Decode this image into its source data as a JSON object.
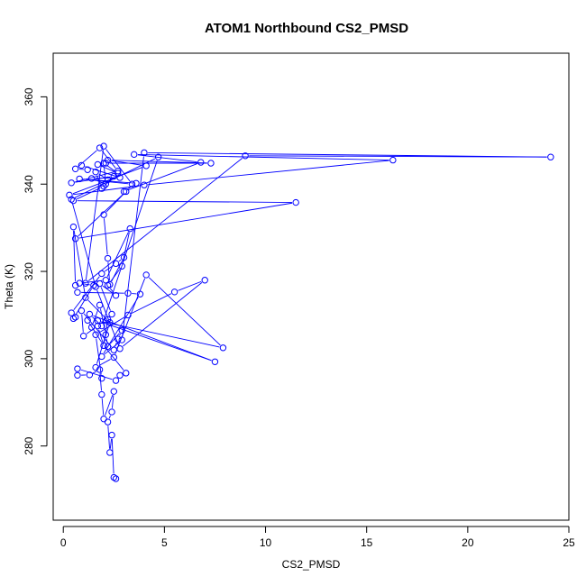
{
  "chart_data": {
    "type": "scatter",
    "title": "ATOM1 Northbound CS2_PMSD",
    "xlabel": "CS2_PMSD",
    "ylabel": "Theta (K)",
    "xlim": [
      -0.5,
      25
    ],
    "ylim": [
      263,
      370
    ],
    "x_ticks": [
      0,
      5,
      10,
      15,
      20,
      25
    ],
    "y_ticks": [
      280,
      300,
      320,
      340,
      360
    ],
    "x_tick_labels": [
      "0",
      "5",
      "10",
      "15",
      "20",
      "25"
    ],
    "y_tick_labels": [
      "280",
      "300",
      "320",
      "340",
      "360"
    ],
    "colors": {
      "series": "#0000ff",
      "axis": "#000000"
    },
    "marker": "open-circle",
    "connected": true,
    "series": [
      {
        "x": [
          2.6,
          2.5,
          2.4,
          2.3,
          2.2,
          2.4,
          2.5,
          2.0,
          1.9,
          1.8,
          1.3,
          0.7,
          0.7,
          2.6,
          2.8,
          3.1,
          2.0,
          1.7,
          1.0,
          0.9,
          2.5,
          2.7,
          2.9,
          2.2,
          2.1,
          1.8,
          1.4,
          1.2,
          2.0,
          2.2,
          2.4,
          1.8,
          2.6,
          2.2,
          2.9,
          3.3,
          2.1,
          0.8,
          1.5,
          0.5,
          0.6,
          0.4,
          1.9,
          2.6,
          3.0,
          2.3,
          2.2,
          2.0,
          3.1,
          0.6,
          11.5,
          0.5,
          2.0,
          2.2,
          1.6,
          1.9,
          2.5,
          0.4,
          2.7,
          1.8,
          0.6,
          1.2,
          0.9,
          2.8,
          1.4,
          2.1,
          2.0,
          2.7,
          1.7,
          2.1,
          7.3,
          2.2,
          4.1,
          0.3,
          4.0,
          16.3,
          3.5,
          6.8,
          3.0,
          3.6,
          0.8,
          3.4,
          2.0,
          1.1,
          9.0,
          24.1,
          4.0,
          2.9,
          1.9,
          3.8,
          3.2,
          0.7,
          0.6,
          0.5,
          1.1,
          2.3,
          1.6,
          2.5,
          4.1,
          7.9,
          1.7,
          7.5,
          1.3,
          1.9,
          4.7,
          0.4,
          1.6,
          2.8,
          7.0,
          5.5,
          3.2,
          1.6,
          1.9
        ],
        "y": [
          272.5,
          272.8,
          282.5,
          278.5,
          285.5,
          287.8,
          292.5,
          286.2,
          291.8,
          297.5,
          296.3,
          296.2,
          297.7,
          295.0,
          296.2,
          296.7,
          303.0,
          307.5,
          305.2,
          311.0,
          302.0,
          304.5,
          306.5,
          302.8,
          305.5,
          312.3,
          307.2,
          308.8,
          303.0,
          309.0,
          310.2,
          317.2,
          314.5,
          316.8,
          321.2,
          329.8,
          318.0,
          317.3,
          316.8,
          309.2,
          309.5,
          310.5,
          319.5,
          321.8,
          323.2,
          317.0,
          323.0,
          333.0,
          338.3,
          327.5,
          335.8,
          336.2,
          339.5,
          341.0,
          342.8,
          339.0,
          341.8,
          340.3,
          343.0,
          348.3,
          343.5,
          343.3,
          344.3,
          341.5,
          341.3,
          340.0,
          344.8,
          342.5,
          344.5,
          344.8,
          344.8,
          345.5,
          344.2,
          337.5,
          339.8,
          345.5,
          346.8,
          345.0,
          338.3,
          340.2,
          341.2,
          340.0,
          348.7,
          317.3,
          346.5,
          346.2,
          347.2,
          304.3,
          300.5,
          314.8,
          315.0,
          315.2,
          316.8,
          330.2,
          314.0,
          308.3,
          298.0,
          300.3,
          319.2,
          302.5,
          308.7,
          299.3,
          310.2,
          307.5,
          346.2,
          336.5,
          316.5,
          302.3,
          318.0,
          315.3,
          310.0,
          305.5,
          295.5
        ]
      }
    ]
  }
}
